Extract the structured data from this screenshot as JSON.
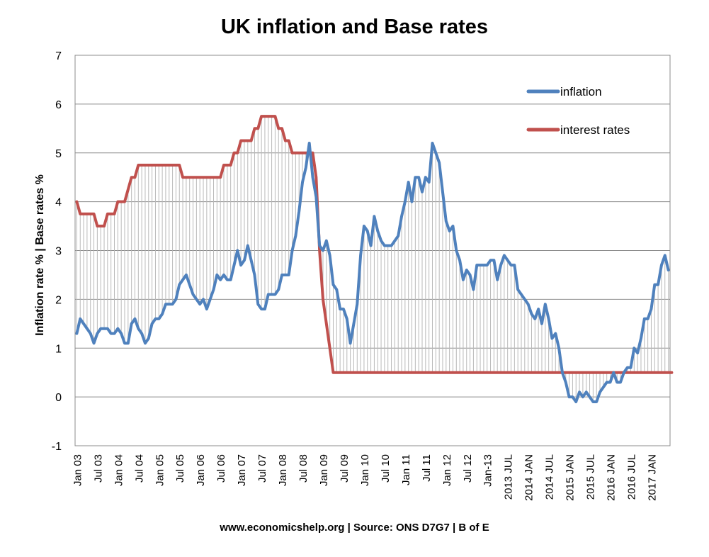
{
  "chart_data": {
    "type": "line",
    "title": "UK inflation and Base rates",
    "ylabel": "Inflation rate % | Base rates %",
    "source": "www.economicshelp.org | Source: ONS D7G7 | B of E",
    "ylim": [
      -1,
      7
    ],
    "y_ticks": [
      "-1",
      "0",
      "1",
      "2",
      "3",
      "4",
      "5",
      "6",
      "7"
    ],
    "grid": true,
    "legend_position": "top-right",
    "x_tick_labels": [
      "Jan 03",
      "Jul 03",
      "Jan 04",
      "Jul 04",
      "Jan 05",
      "Jul 05",
      "Jan 06",
      "Jul 06",
      "Jan 07",
      "Jul 07",
      "Jan 08",
      "Jul 08",
      "Jan 09",
      "Jul 09",
      "Jan 10",
      "Jul 10",
      "Jan 11",
      "Jul 11",
      "Jan 12",
      "Jul 12",
      "Jan-13",
      "2013 JUL",
      "2014 JAN",
      "2014 JUL",
      "2015 JAN",
      "2015 JUL",
      "2016 JAN",
      "2016 JUL",
      "2017 JAN"
    ],
    "x_start": "Jan 2003",
    "x_end": "Jun 2017",
    "series": [
      {
        "name": "inflation",
        "color": "#4f81bd",
        "values": [
          1.3,
          1.6,
          1.5,
          1.4,
          1.3,
          1.1,
          1.3,
          1.4,
          1.4,
          1.4,
          1.3,
          1.3,
          1.4,
          1.3,
          1.1,
          1.1,
          1.5,
          1.6,
          1.4,
          1.3,
          1.1,
          1.2,
          1.5,
          1.6,
          1.6,
          1.7,
          1.9,
          1.9,
          1.9,
          2.0,
          2.3,
          2.4,
          2.5,
          2.3,
          2.1,
          2.0,
          1.9,
          2.0,
          1.8,
          2.0,
          2.2,
          2.5,
          2.4,
          2.5,
          2.4,
          2.4,
          2.7,
          3.0,
          2.7,
          2.8,
          3.1,
          2.8,
          2.5,
          1.9,
          1.8,
          1.8,
          2.1,
          2.1,
          2.1,
          2.2,
          2.5,
          2.5,
          2.5,
          3.0,
          3.3,
          3.8,
          4.4,
          4.7,
          5.2,
          4.5,
          4.1,
          3.1,
          3.0,
          3.2,
          2.9,
          2.3,
          2.2,
          1.8,
          1.8,
          1.6,
          1.1,
          1.5,
          1.9,
          2.9,
          3.5,
          3.4,
          3.1,
          3.7,
          3.4,
          3.2,
          3.1,
          3.1,
          3.1,
          3.2,
          3.3,
          3.7,
          4.0,
          4.4,
          4.0,
          4.5,
          4.5,
          4.2,
          4.5,
          4.4,
          5.2,
          5.0,
          4.8,
          4.2,
          3.6,
          3.4,
          3.5,
          3.0,
          2.8,
          2.4,
          2.6,
          2.5,
          2.2,
          2.7,
          2.7,
          2.7,
          2.7,
          2.8,
          2.8,
          2.4,
          2.7,
          2.9,
          2.8,
          2.7,
          2.7,
          2.2,
          2.1,
          2.0,
          1.9,
          1.7,
          1.6,
          1.8,
          1.5,
          1.9,
          1.6,
          1.2,
          1.3,
          1.0,
          0.5,
          0.3,
          0.0,
          0.0,
          -0.1,
          0.1,
          0.0,
          0.1,
          0.0,
          -0.1,
          -0.1,
          0.1,
          0.2,
          0.3,
          0.3,
          0.5,
          0.3,
          0.3,
          0.5,
          0.6,
          0.6,
          1.0,
          0.9,
          1.2,
          1.6,
          1.6,
          1.8,
          2.3,
          2.3,
          2.7,
          2.9,
          2.6
        ],
        "line_width": 4
      },
      {
        "name": "interest rates",
        "color": "#c0504d",
        "values": [
          4.0,
          3.75,
          3.75,
          3.75,
          3.75,
          3.75,
          3.5,
          3.5,
          3.5,
          3.75,
          3.75,
          3.75,
          4.0,
          4.0,
          4.0,
          4.25,
          4.5,
          4.5,
          4.75,
          4.75,
          4.75,
          4.75,
          4.75,
          4.75,
          4.75,
          4.75,
          4.75,
          4.75,
          4.75,
          4.75,
          4.75,
          4.5,
          4.5,
          4.5,
          4.5,
          4.5,
          4.5,
          4.5,
          4.5,
          4.5,
          4.5,
          4.5,
          4.5,
          4.75,
          4.75,
          4.75,
          5.0,
          5.0,
          5.25,
          5.25,
          5.25,
          5.25,
          5.5,
          5.5,
          5.75,
          5.75,
          5.75,
          5.75,
          5.75,
          5.5,
          5.5,
          5.25,
          5.25,
          5.0,
          5.0,
          5.0,
          5.0,
          5.0,
          5.0,
          5.0,
          4.5,
          3.0,
          2.0,
          1.5,
          1.0,
          0.5,
          0.5,
          0.5,
          0.5,
          0.5,
          0.5,
          0.5,
          0.5,
          0.5,
          0.5,
          0.5,
          0.5,
          0.5,
          0.5,
          0.5,
          0.5,
          0.5,
          0.5,
          0.5,
          0.5,
          0.5,
          0.5,
          0.5,
          0.5,
          0.5,
          0.5,
          0.5,
          0.5,
          0.5,
          0.5,
          0.5,
          0.5,
          0.5,
          0.5,
          0.5,
          0.5,
          0.5,
          0.5,
          0.5,
          0.5,
          0.5,
          0.5,
          0.5,
          0.5,
          0.5,
          0.5,
          0.5,
          0.5,
          0.5,
          0.5,
          0.5,
          0.5,
          0.5,
          0.5,
          0.5,
          0.5,
          0.5,
          0.5,
          0.5,
          0.5,
          0.5,
          0.5,
          0.5,
          0.5,
          0.5,
          0.5,
          0.5,
          0.5,
          0.5,
          0.5,
          0.5,
          0.5,
          0.5,
          0.5,
          0.5,
          0.5,
          0.5,
          0.5,
          0.5,
          0.5,
          0.5,
          0.5,
          0.5,
          0.5,
          0.5,
          0.5,
          0.5,
          0.5,
          0.5,
          0.5,
          0.5,
          0.5,
          0.5,
          0.5,
          0.5,
          0.5,
          0.5,
          0.5,
          0.5,
          0.5
        ],
        "line_width": 4
      }
    ]
  }
}
